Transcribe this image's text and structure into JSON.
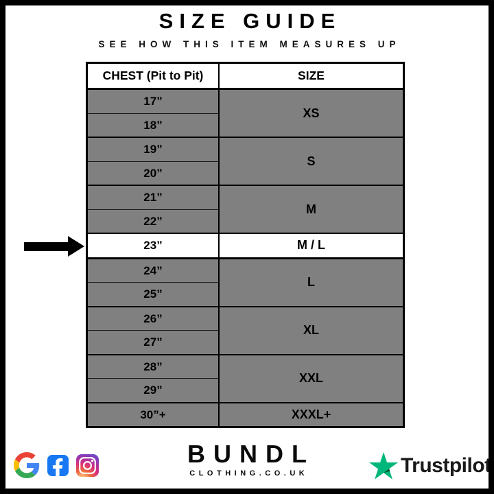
{
  "header": {
    "title": "SIZE GUIDE",
    "subtitle": "SEE HOW THIS ITEM MEASURES UP"
  },
  "table": {
    "columns": [
      "CHEST (Pit to Pit)",
      "SIZE"
    ],
    "groups": [
      {
        "size": "XS",
        "chests": [
          "17”",
          "18”"
        ],
        "highlight": false
      },
      {
        "size": "S",
        "chests": [
          "19”",
          "20”"
        ],
        "highlight": false
      },
      {
        "size": "M",
        "chests": [
          "21”",
          "22”"
        ],
        "highlight": false
      },
      {
        "size": "M / L",
        "chests": [
          "23”"
        ],
        "highlight": true
      },
      {
        "size": "L",
        "chests": [
          "24”",
          "25”"
        ],
        "highlight": false
      },
      {
        "size": "XL",
        "chests": [
          "26”",
          "27”"
        ],
        "highlight": false
      },
      {
        "size": "XXL",
        "chests": [
          "28”",
          "29”"
        ],
        "highlight": false
      },
      {
        "size": "XXXL+",
        "chests": [
          "30”+"
        ],
        "highlight": false
      }
    ],
    "highlighted_row": {
      "chest": "23”",
      "size": "M / L"
    }
  },
  "chart_data": {
    "type": "table",
    "title": "SIZE GUIDE",
    "columns": [
      "CHEST (Pit to Pit)",
      "SIZE"
    ],
    "rows": [
      [
        "17”",
        "XS"
      ],
      [
        "18”",
        "XS"
      ],
      [
        "19”",
        "S"
      ],
      [
        "20”",
        "S"
      ],
      [
        "21”",
        "M"
      ],
      [
        "22”",
        "M"
      ],
      [
        "23”",
        "M / L"
      ],
      [
        "24”",
        "L"
      ],
      [
        "25”",
        "L"
      ],
      [
        "26”",
        "XL"
      ],
      [
        "27”",
        "XL"
      ],
      [
        "28”",
        "XXL"
      ],
      [
        "29”",
        "XXL"
      ],
      [
        "30”+",
        "XXXL+"
      ]
    ],
    "highlighted_row_index": 6
  },
  "footer": {
    "social_icons": [
      "google-icon",
      "facebook-icon",
      "instagram-icon"
    ],
    "brand": {
      "name": "BUNDL",
      "domain": "CLOTHING.CO.UK"
    },
    "trustpilot": {
      "label": "Trustpilot",
      "star_color": "#00B67A",
      "star_shade_color": "#005128"
    }
  },
  "colors": {
    "row_gray": "#808080",
    "highlight_white": "#FFFFFF",
    "border_black": "#000000",
    "facebook_blue": "#1877F2"
  }
}
